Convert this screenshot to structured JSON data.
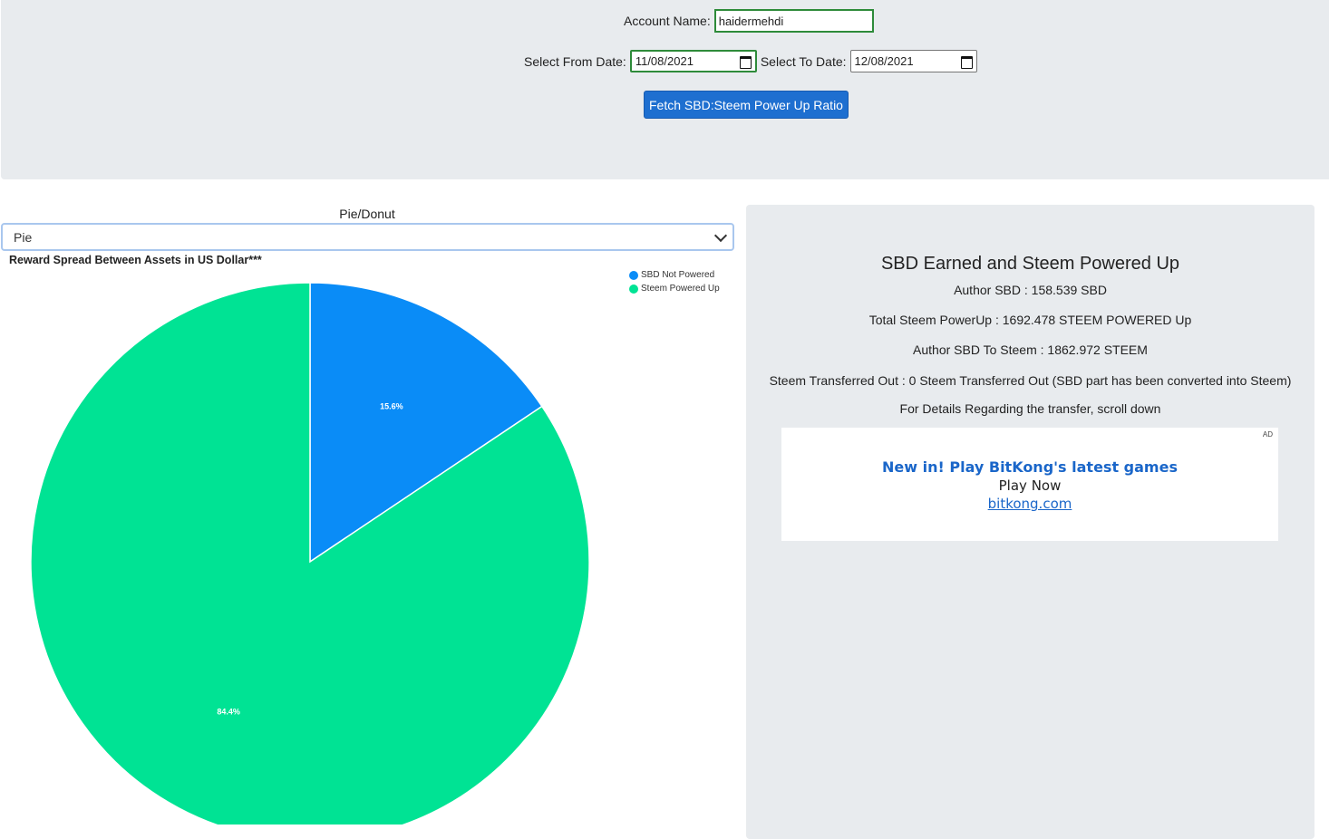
{
  "form": {
    "account_label": "Account Name:",
    "account_value": "haidermehdi",
    "from_label": "Select From Date:",
    "from_value": "11/08/2021",
    "to_label": "Select To Date:",
    "to_value": "12/08/2021",
    "fetch_label": "Fetch SBD:Steem Power Up Ratio"
  },
  "chart_toggle": {
    "label": "Pie/Donut",
    "selected": "Pie"
  },
  "chart_data": {
    "type": "pie",
    "title": "Reward Spread Between Assets in US Dollar***",
    "categories": [
      "SBD Not Powered",
      "Steem Powered Up"
    ],
    "values": [
      15.6,
      84.4
    ],
    "data_labels": [
      "15.6%",
      "84.4%"
    ],
    "colors": [
      "#0a8cf7",
      "#00e394"
    ],
    "legend_position": "top-right"
  },
  "summary": {
    "title": "SBD Earned and Steem Powered Up",
    "author_sbd": "Author SBD : 158.539 SBD",
    "total_powerup": "Total Steem PowerUp : 1692.478 STEEM POWERED Up",
    "sbd_to_steem": "Author SBD To Steem : 1862.972 STEEM",
    "transferred_out": "Steem Transferred Out : 0 Steem Transferred Out (SBD part has been converted into Steem)",
    "details_note": "For Details Regarding the transfer, scroll down"
  },
  "ad": {
    "badge": "AD",
    "title": "New in! Play BitKong's latest games",
    "cta": "Play Now",
    "link": "bitkong.com"
  }
}
